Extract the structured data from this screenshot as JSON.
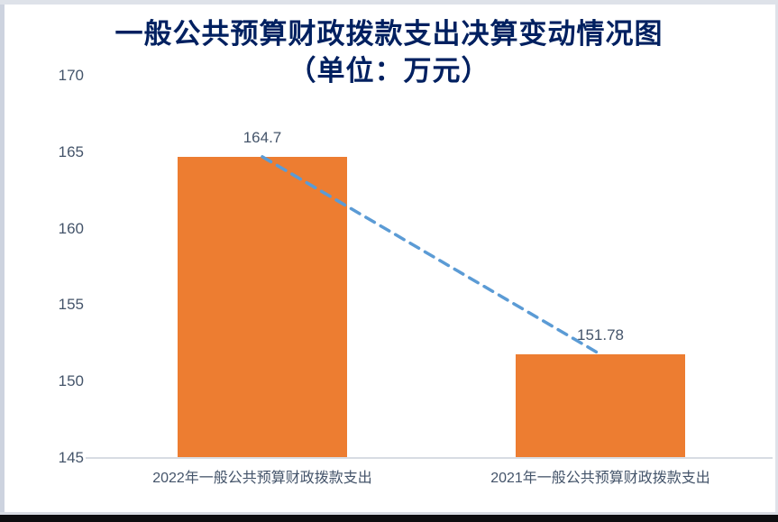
{
  "chart_data": {
    "type": "bar",
    "title": "一般公共预算财政拨款支出决算变动情况图",
    "subtitle": "（单位：万元）",
    "categories": [
      "2022年一般公共预算财政拨款支出",
      "2021年一般公共预算财政拨款支出"
    ],
    "values": [
      164.7,
      151.78
    ],
    "data_labels": [
      "164.7",
      "151.78"
    ],
    "y_ticks": [
      170,
      165,
      160,
      155,
      150,
      145
    ],
    "ylim": [
      145,
      170
    ],
    "xlabel": "",
    "ylabel": "",
    "grid": false,
    "legend": "none",
    "trendline": {
      "style": "dashed",
      "from_value": 164.7,
      "to_value": 151.78
    }
  },
  "colors": {
    "bar": "#ED7D31",
    "trendline": "#5B9BD5",
    "title_text": "#002060",
    "axis_text": "#44546A",
    "axis_line": "#D8DCE3",
    "frame_border": "#CDD3DF",
    "bottom_strip": "#0D0D0F"
  }
}
